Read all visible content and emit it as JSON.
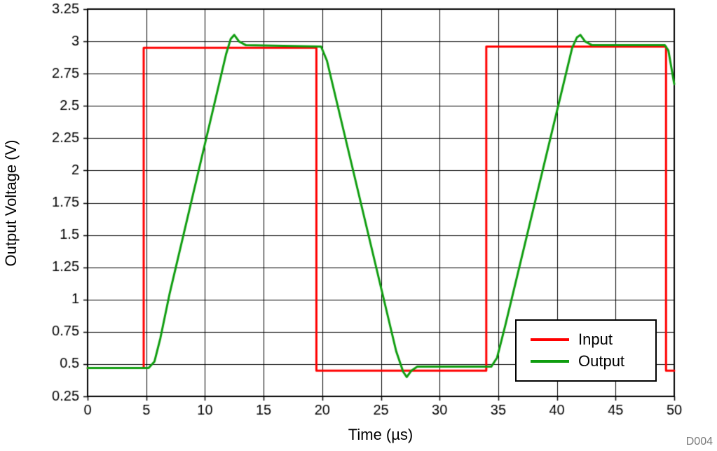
{
  "figure_id": "D004",
  "chart_data": {
    "type": "line",
    "title": "",
    "xlabel": "Time (µs)",
    "ylabel": "Output Voltage (V)",
    "xlim": [
      0,
      50
    ],
    "ylim": [
      0.25,
      3.25
    ],
    "xticks": [
      0,
      5,
      10,
      15,
      20,
      25,
      30,
      35,
      40,
      45,
      50
    ],
    "xtick_labels": [
      "0",
      "5",
      "10",
      "15",
      "20",
      "25",
      "30",
      "35",
      "40",
      "45",
      "50"
    ],
    "yticks": [
      0.25,
      0.5,
      0.75,
      1,
      1.25,
      1.5,
      1.75,
      2,
      2.25,
      2.5,
      2.75,
      3,
      3.25
    ],
    "ytick_labels": [
      "0.25",
      "0.5",
      "0.75",
      "1",
      "1.25",
      "1.5",
      "1.75",
      "2",
      "2.25",
      "2.5",
      "2.75",
      "3",
      "3.25"
    ],
    "grid": true,
    "legend_position": "lower-right",
    "series": [
      {
        "name": "Input",
        "color": "#ff0000",
        "x": [
          0,
          4.78,
          4.78,
          19.5,
          19.5,
          33.98,
          33.98,
          49.3,
          49.3,
          50
        ],
        "y": [
          0.47,
          0.47,
          2.95,
          2.95,
          0.45,
          0.45,
          2.96,
          2.96,
          0.45,
          0.45
        ]
      },
      {
        "name": "Output",
        "color": "#0f9d0f",
        "x": [
          0,
          5.2,
          5.7,
          6.2,
          7.0,
          11.8,
          12.2,
          12.5,
          12.9,
          13.5,
          19.9,
          20.4,
          26.3,
          26.9,
          27.2,
          27.6,
          28.1,
          34.4,
          34.9,
          35.6,
          41.3,
          41.7,
          42.0,
          42.4,
          43.0,
          49.2,
          49.5,
          50
        ],
        "y": [
          0.47,
          0.47,
          0.52,
          0.7,
          1.05,
          2.9,
          3.02,
          3.05,
          3.0,
          2.97,
          2.96,
          2.85,
          0.6,
          0.44,
          0.4,
          0.45,
          0.48,
          0.48,
          0.55,
          0.8,
          2.95,
          3.03,
          3.05,
          3.0,
          2.97,
          2.97,
          2.93,
          2.67
        ]
      }
    ]
  }
}
